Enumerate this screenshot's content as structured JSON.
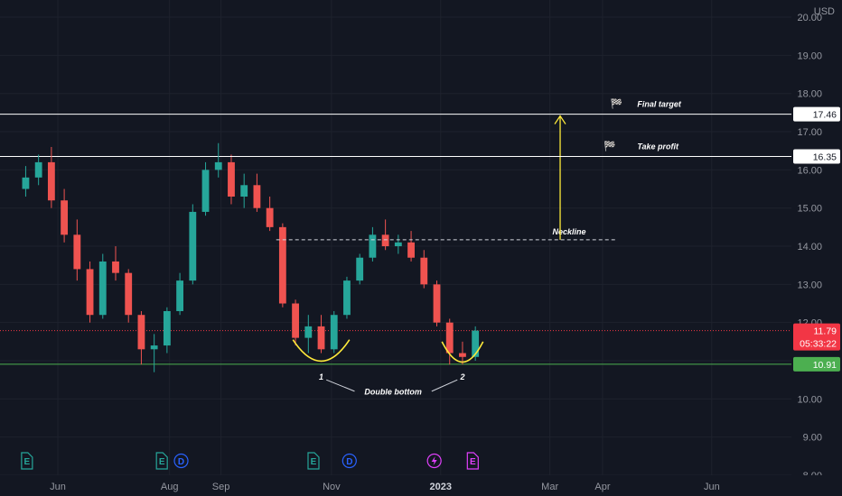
{
  "chart_data": {
    "type": "candlestick",
    "currency": "USD",
    "y_ticks": [
      "20.00",
      "19.00",
      "18.00",
      "17.00",
      "16.00",
      "15.00",
      "14.00",
      "13.00",
      "12.00",
      "11.00",
      "10.00",
      "9.00",
      "8.00"
    ],
    "y_range": [
      8.0,
      20.45
    ],
    "x_ticks": [
      {
        "label": "Jun",
        "week": 2.5,
        "bold": false
      },
      {
        "label": "Aug",
        "week": 11.2,
        "bold": false
      },
      {
        "label": "Sep",
        "week": 15.2,
        "bold": false
      },
      {
        "label": "Nov",
        "week": 23.8,
        "bold": false
      },
      {
        "label": "2023",
        "week": 32.3,
        "bold": true
      },
      {
        "label": "Mar",
        "week": 40.8,
        "bold": false
      },
      {
        "label": "Apr",
        "week": 44.9,
        "bold": false
      },
      {
        "label": "Jun",
        "week": 53.4,
        "bold": false
      }
    ],
    "weeks_range": [
      -2.0,
      59.6
    ],
    "ohlc": [
      [
        15.5,
        16.1,
        15.3,
        15.8
      ],
      [
        15.8,
        16.4,
        15.6,
        16.2
      ],
      [
        16.2,
        16.6,
        15.0,
        15.2
      ],
      [
        15.2,
        15.5,
        14.1,
        14.3
      ],
      [
        14.3,
        14.7,
        13.1,
        13.4
      ],
      [
        13.4,
        13.6,
        12.0,
        12.2
      ],
      [
        12.2,
        13.8,
        12.1,
        13.6
      ],
      [
        13.6,
        14.0,
        13.1,
        13.3
      ],
      [
        13.3,
        13.4,
        12.0,
        12.2
      ],
      [
        12.2,
        12.3,
        10.9,
        11.3
      ],
      [
        11.3,
        11.7,
        10.7,
        11.4
      ],
      [
        11.4,
        12.4,
        11.2,
        12.3
      ],
      [
        12.3,
        13.3,
        12.2,
        13.1
      ],
      [
        13.1,
        15.1,
        13.0,
        14.9
      ],
      [
        14.9,
        16.2,
        14.8,
        16.0
      ],
      [
        16.0,
        16.7,
        15.8,
        16.2
      ],
      [
        16.2,
        16.4,
        15.1,
        15.3
      ],
      [
        15.3,
        15.9,
        15.0,
        15.6
      ],
      [
        15.6,
        15.9,
        14.9,
        15.0
      ],
      [
        15.0,
        15.3,
        14.4,
        14.5
      ],
      [
        14.5,
        14.6,
        12.4,
        12.5
      ],
      [
        12.5,
        12.6,
        11.4,
        11.6
      ],
      [
        11.6,
        12.2,
        11.2,
        11.9
      ],
      [
        11.9,
        12.2,
        11.2,
        11.3
      ],
      [
        11.3,
        12.3,
        11.2,
        12.2
      ],
      [
        12.2,
        13.2,
        12.1,
        13.1
      ],
      [
        13.1,
        13.8,
        13.0,
        13.7
      ],
      [
        13.7,
        14.5,
        13.6,
        14.3
      ],
      [
        14.3,
        14.7,
        13.9,
        14.0
      ],
      [
        14.0,
        14.3,
        13.8,
        14.1
      ],
      [
        14.1,
        14.4,
        13.6,
        13.7
      ],
      [
        13.7,
        13.9,
        12.9,
        13.0
      ],
      [
        13.0,
        13.1,
        11.9,
        12.0
      ],
      [
        12.0,
        12.1,
        10.9,
        11.2
      ],
      [
        11.2,
        11.5,
        10.9,
        11.1
      ],
      [
        11.1,
        11.9,
        11.0,
        11.79
      ]
    ],
    "last_price": 11.79,
    "countdown": "05:33:22",
    "levels": [
      {
        "label": "17.46",
        "value": 17.46,
        "color": "#ffffff"
      },
      {
        "label": "16.35",
        "value": 16.35,
        "color": "#ffffff"
      },
      {
        "label": "10.91",
        "value": 10.91,
        "color": "#4caf50"
      }
    ],
    "neckline_value": 14.17,
    "annotations": {
      "final_target": "Final target",
      "take_profit": "Take profit",
      "neckline": "Neckline",
      "bottom1": "1",
      "bottom2": "2",
      "double_bottom": "Double bottom"
    },
    "events": [
      {
        "type": "E",
        "week": 0.1
      },
      {
        "type": "E",
        "week": 10.6
      },
      {
        "type": "D",
        "week": 12.1
      },
      {
        "type": "E",
        "week": 22.4
      },
      {
        "type": "D",
        "week": 25.2
      },
      {
        "type": "flash",
        "week": 31.8
      },
      {
        "type": "E",
        "week": 34.8
      }
    ]
  }
}
